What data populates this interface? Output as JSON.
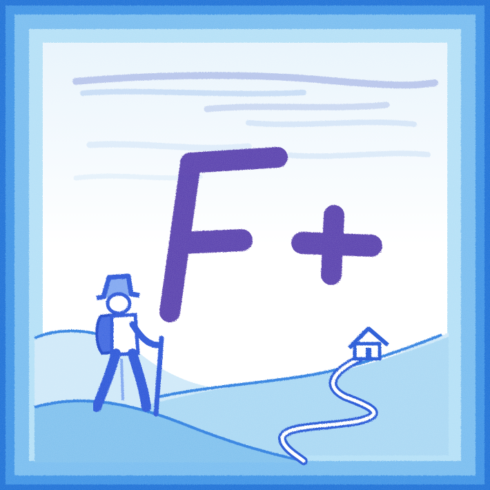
{
  "drawing": {
    "grade_letter": "F",
    "grade_modifier": "+",
    "colors": {
      "frame_dark": "#1f6fd6",
      "frame_mid": "#4aa3ea",
      "frame_light": "#9fd6f5",
      "ink": "#4a2fa6",
      "ink_light": "#6a52c8",
      "hill_fill": "#8ec9f0",
      "hill_stroke": "#2f7fe0",
      "hiker": "#2a55d8",
      "sky_streak": "#4c63c9"
    }
  }
}
